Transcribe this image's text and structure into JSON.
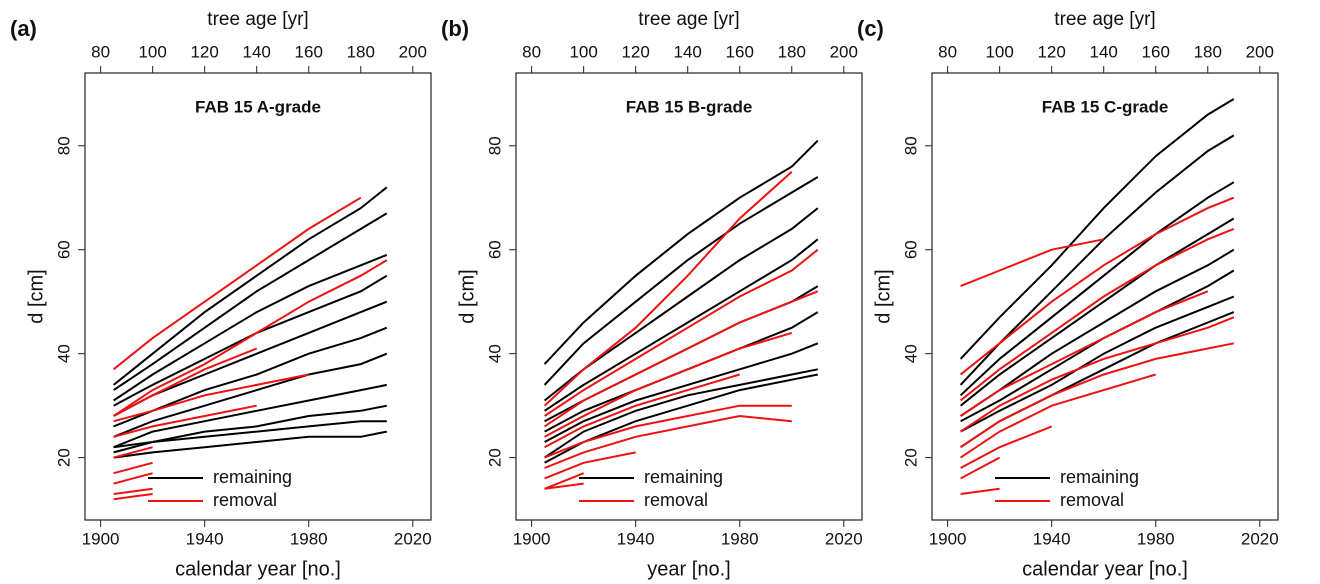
{
  "chart_data": [
    {
      "type": "line",
      "panel_label": "(a)",
      "title": "FAB 15 A-grade",
      "x_label": "calendar year [no.]",
      "top_x_label": "tree age [yr]",
      "y_label": "d [cm]",
      "x": [
        1905,
        1920,
        1940,
        1960,
        1980,
        2000,
        2010
      ],
      "xlim": [
        1894,
        2027
      ],
      "xticks": [
        1900,
        1940,
        1980,
        2020
      ],
      "top_xlim": [
        74,
        207
      ],
      "top_xticks": [
        80,
        100,
        120,
        140,
        160,
        180,
        200
      ],
      "ylim": [
        8,
        94
      ],
      "yticks": [
        20,
        40,
        60,
        80
      ],
      "series": [
        {
          "name": "remaining",
          "color": "#000000",
          "values": [
            [
              34,
              40,
              48,
              55,
              62,
              68,
              72
            ],
            [
              33,
              38,
              45,
              52,
              58,
              64,
              67
            ],
            [
              31,
              36,
              42,
              48,
              53,
              57,
              59
            ],
            [
              30,
              34,
              39,
              44,
              48,
              52,
              55
            ],
            [
              28,
              32,
              36,
              40,
              44,
              48,
              50
            ],
            [
              26,
              29,
              33,
              36,
              40,
              43,
              45
            ],
            [
              24,
              27,
              30,
              33,
              36,
              38,
              40
            ],
            [
              22,
              25,
              27,
              29,
              31,
              33,
              34
            ],
            [
              21,
              23,
              25,
              26,
              28,
              29,
              30
            ],
            [
              20,
              21,
              22,
              23,
              24,
              24,
              25
            ],
            [
              22,
              23,
              24,
              25,
              26,
              27,
              27
            ]
          ]
        },
        {
          "name": "removal",
          "color": "#ee1111",
          "values": [
            [
              37,
              43,
              50,
              57,
              64,
              70,
              null
            ],
            [
              28,
              33,
              38,
              44,
              50,
              55,
              58
            ],
            [
              28,
              32,
              37,
              41,
              null,
              null,
              null
            ],
            [
              27,
              29,
              32,
              34,
              36,
              null,
              null
            ],
            [
              24,
              26,
              28,
              30,
              null,
              null,
              null
            ],
            [
              20,
              22,
              null,
              null,
              null,
              null,
              null
            ],
            [
              17,
              19,
              null,
              null,
              null,
              null,
              null
            ],
            [
              15,
              17,
              null,
              null,
              null,
              null,
              null
            ],
            [
              13,
              14,
              null,
              null,
              null,
              null,
              null
            ],
            [
              12,
              13,
              null,
              null,
              null,
              null,
              null
            ]
          ]
        }
      ]
    },
    {
      "type": "line",
      "panel_label": "(b)",
      "title": "FAB 15 B-grade",
      "x_label": "year [no.]",
      "top_x_label": "tree age [yr]",
      "y_label": "d [cm]",
      "x": [
        1905,
        1920,
        1940,
        1960,
        1980,
        2000,
        2010
      ],
      "xlim": [
        1894,
        2027
      ],
      "xticks": [
        1900,
        1940,
        1980,
        2020
      ],
      "top_xlim": [
        74,
        207
      ],
      "top_xticks": [
        80,
        100,
        120,
        140,
        160,
        180,
        200
      ],
      "ylim": [
        8,
        94
      ],
      "yticks": [
        20,
        40,
        60,
        80
      ],
      "series": [
        {
          "name": "remaining",
          "color": "#000000",
          "values": [
            [
              38,
              46,
              55,
              63,
              70,
              76,
              81
            ],
            [
              34,
              42,
              50,
              58,
              65,
              71,
              74
            ],
            [
              31,
              37,
              44,
              51,
              58,
              64,
              68
            ],
            [
              29,
              34,
              40,
              46,
              52,
              58,
              62
            ],
            [
              27,
              31,
              36,
              41,
              46,
              50,
              53
            ],
            [
              25,
              29,
              33,
              37,
              41,
              45,
              48
            ],
            [
              23,
              27,
              31,
              34,
              37,
              40,
              42
            ],
            [
              20,
              25,
              29,
              32,
              34,
              36,
              37
            ],
            [
              19,
              23,
              27,
              30,
              33,
              35,
              36
            ]
          ]
        },
        {
          "name": "removal",
          "color": "#ee1111",
          "values": [
            [
              30,
              37,
              45,
              55,
              66,
              75,
              null
            ],
            [
              28,
              33,
              39,
              45,
              51,
              56,
              60
            ],
            [
              26,
              31,
              36,
              41,
              46,
              50,
              52
            ],
            [
              24,
              28,
              33,
              37,
              41,
              44,
              null
            ],
            [
              22,
              26,
              30,
              33,
              36,
              null,
              null
            ],
            [
              20,
              23,
              26,
              28,
              30,
              30,
              null
            ],
            [
              18,
              21,
              24,
              26,
              28,
              27,
              null
            ],
            [
              16,
              19,
              21,
              null,
              null,
              null,
              null
            ],
            [
              14,
              17,
              null,
              null,
              null,
              null,
              null
            ],
            [
              14,
              15,
              null,
              null,
              null,
              null,
              null
            ]
          ]
        }
      ]
    },
    {
      "type": "line",
      "panel_label": "(c)",
      "title": "FAB 15 C-grade",
      "x_label": "calendar year [no.]",
      "top_x_label": "tree age [yr]",
      "y_label": "d [cm]",
      "x": [
        1905,
        1920,
        1940,
        1960,
        1980,
        2000,
        2010
      ],
      "xlim": [
        1894,
        2027
      ],
      "xticks": [
        1900,
        1940,
        1980,
        2020
      ],
      "top_xlim": [
        74,
        207
      ],
      "top_xticks": [
        80,
        100,
        120,
        140,
        160,
        180,
        200
      ],
      "ylim": [
        8,
        94
      ],
      "yticks": [
        20,
        40,
        60,
        80
      ],
      "series": [
        {
          "name": "remaining",
          "color": "#000000",
          "values": [
            [
              39,
              47,
              57,
              68,
              78,
              86,
              89
            ],
            [
              34,
              42,
              52,
              62,
              71,
              79,
              82
            ],
            [
              32,
              39,
              47,
              55,
              63,
              70,
              73
            ],
            [
              30,
              36,
              43,
              50,
              57,
              63,
              66
            ],
            [
              28,
              33,
              40,
              46,
              52,
              57,
              60
            ],
            [
              27,
              31,
              37,
              43,
              48,
              53,
              56
            ],
            [
              25,
              29,
              34,
              40,
              45,
              49,
              51
            ],
            [
              22,
              27,
              32,
              37,
              42,
              46,
              48
            ]
          ]
        },
        {
          "name": "removal",
          "color": "#ee1111",
          "values": [
            [
              53,
              56,
              60,
              62,
              null,
              null,
              null
            ],
            [
              36,
              42,
              50,
              57,
              63,
              68,
              70
            ],
            [
              31,
              37,
              44,
              51,
              57,
              62,
              64
            ],
            [
              28,
              33,
              38,
              43,
              48,
              52,
              null
            ],
            [
              25,
              30,
              35,
              39,
              42,
              45,
              47
            ],
            [
              22,
              27,
              32,
              36,
              39,
              41,
              42
            ],
            [
              20,
              25,
              30,
              33,
              36,
              null,
              null
            ],
            [
              18,
              22,
              26,
              null,
              null,
              null,
              null
            ],
            [
              16,
              20,
              null,
              null,
              null,
              null,
              null
            ],
            [
              13,
              14,
              null,
              null,
              null,
              null,
              null
            ]
          ]
        }
      ]
    }
  ]
}
